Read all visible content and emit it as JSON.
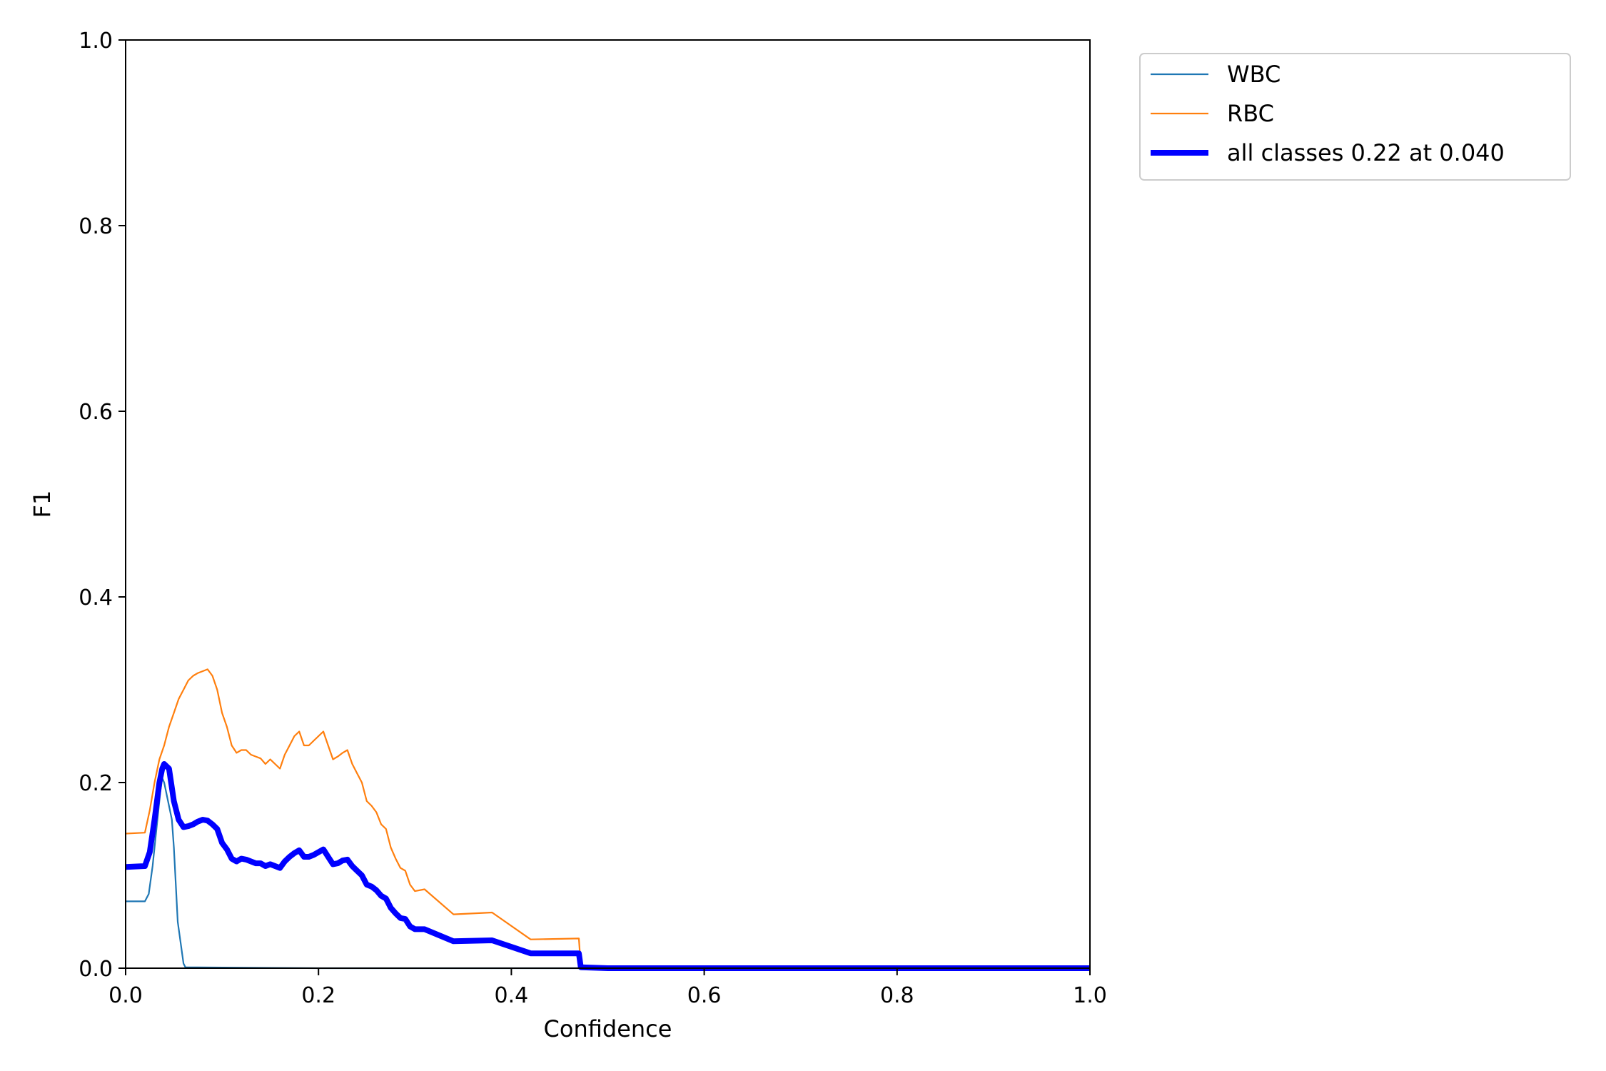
{
  "chart_data": {
    "type": "line",
    "xlabel": "Confidence",
    "ylabel": "F1",
    "xlim": [
      0.0,
      1.0
    ],
    "ylim": [
      0.0,
      1.0
    ],
    "grid": false,
    "legend_position": "outside-top-right",
    "xticks": [
      "0.0",
      "0.2",
      "0.4",
      "0.6",
      "0.8",
      "1.0"
    ],
    "yticks": [
      "0.0",
      "0.2",
      "0.4",
      "0.6",
      "0.8",
      "1.0"
    ],
    "series": [
      {
        "name": "WBC",
        "color": "#1f77b4",
        "width": "thin",
        "points": [
          [
            0.0,
            0.072
          ],
          [
            0.02,
            0.072
          ],
          [
            0.024,
            0.08
          ],
          [
            0.028,
            0.11
          ],
          [
            0.032,
            0.15
          ],
          [
            0.036,
            0.19
          ],
          [
            0.038,
            0.205
          ],
          [
            0.04,
            0.2
          ],
          [
            0.044,
            0.18
          ],
          [
            0.048,
            0.16
          ],
          [
            0.05,
            0.13
          ],
          [
            0.052,
            0.09
          ],
          [
            0.054,
            0.05
          ],
          [
            0.056,
            0.035
          ],
          [
            0.058,
            0.02
          ],
          [
            0.06,
            0.005
          ],
          [
            0.062,
            0.001
          ],
          [
            0.2,
            0.0
          ],
          [
            0.5,
            0.0
          ],
          [
            1.0,
            0.0
          ]
        ]
      },
      {
        "name": "RBC",
        "color": "#ff7f0e",
        "width": "thin",
        "points": [
          [
            0.0,
            0.145
          ],
          [
            0.02,
            0.146
          ],
          [
            0.025,
            0.17
          ],
          [
            0.03,
            0.2
          ],
          [
            0.035,
            0.225
          ],
          [
            0.04,
            0.24
          ],
          [
            0.045,
            0.26
          ],
          [
            0.05,
            0.275
          ],
          [
            0.055,
            0.29
          ],
          [
            0.06,
            0.3
          ],
          [
            0.065,
            0.31
          ],
          [
            0.07,
            0.315
          ],
          [
            0.075,
            0.318
          ],
          [
            0.08,
            0.32
          ],
          [
            0.085,
            0.322
          ],
          [
            0.09,
            0.315
          ],
          [
            0.095,
            0.3
          ],
          [
            0.1,
            0.275
          ],
          [
            0.105,
            0.26
          ],
          [
            0.11,
            0.24
          ],
          [
            0.115,
            0.232
          ],
          [
            0.12,
            0.235
          ],
          [
            0.125,
            0.235
          ],
          [
            0.13,
            0.23
          ],
          [
            0.135,
            0.228
          ],
          [
            0.14,
            0.226
          ],
          [
            0.145,
            0.22
          ],
          [
            0.15,
            0.225
          ],
          [
            0.155,
            0.22
          ],
          [
            0.16,
            0.215
          ],
          [
            0.165,
            0.23
          ],
          [
            0.17,
            0.24
          ],
          [
            0.175,
            0.25
          ],
          [
            0.18,
            0.255
          ],
          [
            0.185,
            0.24
          ],
          [
            0.19,
            0.24
          ],
          [
            0.195,
            0.245
          ],
          [
            0.2,
            0.25
          ],
          [
            0.205,
            0.255
          ],
          [
            0.21,
            0.24
          ],
          [
            0.215,
            0.225
          ],
          [
            0.22,
            0.228
          ],
          [
            0.225,
            0.232
          ],
          [
            0.23,
            0.235
          ],
          [
            0.235,
            0.22
          ],
          [
            0.24,
            0.21
          ],
          [
            0.245,
            0.2
          ],
          [
            0.25,
            0.18
          ],
          [
            0.255,
            0.175
          ],
          [
            0.26,
            0.168
          ],
          [
            0.265,
            0.155
          ],
          [
            0.27,
            0.15
          ],
          [
            0.275,
            0.13
          ],
          [
            0.28,
            0.118
          ],
          [
            0.285,
            0.108
          ],
          [
            0.29,
            0.105
          ],
          [
            0.295,
            0.09
          ],
          [
            0.3,
            0.083
          ],
          [
            0.31,
            0.085
          ],
          [
            0.34,
            0.058
          ],
          [
            0.38,
            0.06
          ],
          [
            0.42,
            0.031
          ],
          [
            0.47,
            0.032
          ],
          [
            0.472,
            0.002
          ],
          [
            0.5,
            0.0
          ],
          [
            1.0,
            0.0
          ]
        ]
      },
      {
        "name": "all classes 0.22 at 0.040",
        "color": "#0000ff",
        "width": "thick",
        "points": [
          [
            0.0,
            0.109
          ],
          [
            0.02,
            0.11
          ],
          [
            0.025,
            0.125
          ],
          [
            0.03,
            0.16
          ],
          [
            0.035,
            0.2
          ],
          [
            0.038,
            0.215
          ],
          [
            0.04,
            0.22
          ],
          [
            0.045,
            0.215
          ],
          [
            0.05,
            0.18
          ],
          [
            0.055,
            0.16
          ],
          [
            0.06,
            0.152
          ],
          [
            0.065,
            0.153
          ],
          [
            0.07,
            0.155
          ],
          [
            0.075,
            0.158
          ],
          [
            0.08,
            0.16
          ],
          [
            0.085,
            0.159
          ],
          [
            0.09,
            0.155
          ],
          [
            0.095,
            0.15
          ],
          [
            0.1,
            0.135
          ],
          [
            0.105,
            0.128
          ],
          [
            0.11,
            0.118
          ],
          [
            0.115,
            0.115
          ],
          [
            0.12,
            0.118
          ],
          [
            0.125,
            0.117
          ],
          [
            0.13,
            0.115
          ],
          [
            0.135,
            0.113
          ],
          [
            0.14,
            0.113
          ],
          [
            0.145,
            0.11
          ],
          [
            0.15,
            0.112
          ],
          [
            0.155,
            0.11
          ],
          [
            0.16,
            0.108
          ],
          [
            0.165,
            0.115
          ],
          [
            0.17,
            0.12
          ],
          [
            0.175,
            0.124
          ],
          [
            0.18,
            0.127
          ],
          [
            0.185,
            0.12
          ],
          [
            0.19,
            0.12
          ],
          [
            0.195,
            0.122
          ],
          [
            0.2,
            0.125
          ],
          [
            0.205,
            0.128
          ],
          [
            0.21,
            0.12
          ],
          [
            0.215,
            0.112
          ],
          [
            0.22,
            0.113
          ],
          [
            0.225,
            0.116
          ],
          [
            0.23,
            0.117
          ],
          [
            0.235,
            0.11
          ],
          [
            0.24,
            0.105
          ],
          [
            0.245,
            0.1
          ],
          [
            0.25,
            0.09
          ],
          [
            0.255,
            0.088
          ],
          [
            0.26,
            0.084
          ],
          [
            0.265,
            0.078
          ],
          [
            0.27,
            0.075
          ],
          [
            0.275,
            0.065
          ],
          [
            0.28,
            0.059
          ],
          [
            0.285,
            0.054
          ],
          [
            0.29,
            0.053
          ],
          [
            0.295,
            0.045
          ],
          [
            0.3,
            0.042
          ],
          [
            0.31,
            0.042
          ],
          [
            0.34,
            0.029
          ],
          [
            0.38,
            0.03
          ],
          [
            0.42,
            0.016
          ],
          [
            0.47,
            0.016
          ],
          [
            0.472,
            0.001
          ],
          [
            0.5,
            0.0
          ],
          [
            1.0,
            0.0
          ]
        ]
      }
    ]
  }
}
